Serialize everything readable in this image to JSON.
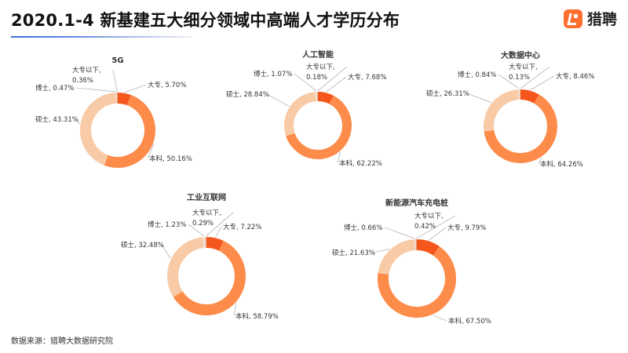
{
  "title": "2020.1-4 新基建五大细分领域中高端人才学历分布",
  "logo": {
    "icon": "liepin-logo-icon",
    "text": "猎聘"
  },
  "source": "数据来源：猎聘大数据研究院",
  "colors": {
    "本科": "#fd8b4a",
    "大专": "#f5561c",
    "硕士": "#f8caa6",
    "博士": "#f3ddd0",
    "大专以下": "#e2a07a"
  },
  "chart_data": [
    {
      "type": "pie",
      "title": "5G",
      "slices": [
        {
          "label": "大专",
          "value": 5.7,
          "text": "大专, 5.70%"
        },
        {
          "label": "本科",
          "value": 50.16,
          "text": "本科, 50.16%"
        },
        {
          "label": "硕士",
          "value": 43.31,
          "text": "硕士, 43.31%"
        },
        {
          "label": "博士",
          "value": 0.47,
          "text": "博士, 0.47%"
        },
        {
          "label": "大专以下",
          "value": 0.36,
          "text": "大专以下,|0.36%"
        }
      ]
    },
    {
      "type": "pie",
      "title": "人工智能",
      "slices": [
        {
          "label": "大专",
          "value": 7.68,
          "text": "大专, 7.68%"
        },
        {
          "label": "本科",
          "value": 62.22,
          "text": "本科, 62.22%"
        },
        {
          "label": "硕士",
          "value": 28.84,
          "text": "硕士, 28.84%"
        },
        {
          "label": "博士",
          "value": 1.07,
          "text": "博士, 1.07%"
        },
        {
          "label": "大专以下",
          "value": 0.18,
          "text": "大专以下,|0.18%"
        }
      ]
    },
    {
      "type": "pie",
      "title": "大数据中心",
      "slices": [
        {
          "label": "大专",
          "value": 8.46,
          "text": "大专, 8.46%"
        },
        {
          "label": "本科",
          "value": 64.26,
          "text": "本科, 64.26%"
        },
        {
          "label": "硕士",
          "value": 26.31,
          "text": "硕士, 26.31%"
        },
        {
          "label": "博士",
          "value": 0.84,
          "text": "博士, 0.84%"
        },
        {
          "label": "大专以下",
          "value": 0.13,
          "text": "大专以下,|0.13%"
        }
      ]
    },
    {
      "type": "pie",
      "title": "工业互联网",
      "slices": [
        {
          "label": "大专",
          "value": 7.22,
          "text": "大专, 7.22%"
        },
        {
          "label": "本科",
          "value": 58.79,
          "text": "本科, 58.79%"
        },
        {
          "label": "硕士",
          "value": 32.48,
          "text": "硕士, 32.48%"
        },
        {
          "label": "博士",
          "value": 1.23,
          "text": "博士, 1.23%"
        },
        {
          "label": "大专以下",
          "value": 0.29,
          "text": "大专以下,|0.29%"
        }
      ]
    },
    {
      "type": "pie",
      "title": "新能源汽车充电桩",
      "slices": [
        {
          "label": "大专",
          "value": 9.79,
          "text": "大专, 9.79%"
        },
        {
          "label": "本科",
          "value": 67.5,
          "text": "本科, 67.50%"
        },
        {
          "label": "硕士",
          "value": 21.63,
          "text": "硕士, 21.63%"
        },
        {
          "label": "博士",
          "value": 0.66,
          "text": "博士, 0.66%"
        },
        {
          "label": "大专以下",
          "value": 0.42,
          "text": "大专以下,|0.42%"
        }
      ]
    }
  ]
}
